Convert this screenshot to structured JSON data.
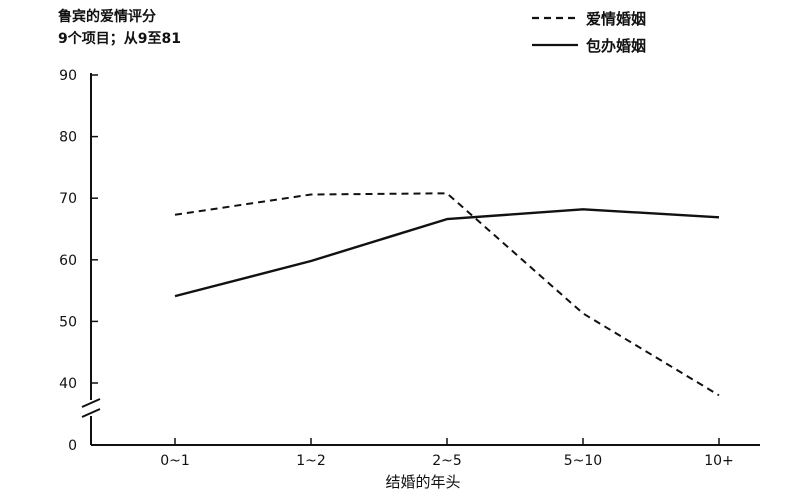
{
  "chart_data": {
    "type": "line",
    "title": "鲁宾的爱情评分",
    "subtitle": "9个项目；从9至81",
    "xlabel": "结婚的年头",
    "ylabel": "",
    "categories": [
      "0~1",
      "1~2",
      "2~5",
      "5~10",
      "10+"
    ],
    "y_ticks": [
      0,
      40,
      50,
      60,
      70,
      80,
      90
    ],
    "ylim": [
      35,
      90
    ],
    "axis_break": true,
    "grid": false,
    "legend_position": "top-right",
    "series": [
      {
        "name": "爱情婚姻",
        "style": "dashed",
        "values": [
          67.3,
          70.6,
          70.8,
          51.3,
          38.0
        ]
      },
      {
        "name": "包办婚姻",
        "style": "solid",
        "values": [
          54.1,
          59.8,
          66.6,
          68.2,
          66.9
        ]
      }
    ]
  }
}
